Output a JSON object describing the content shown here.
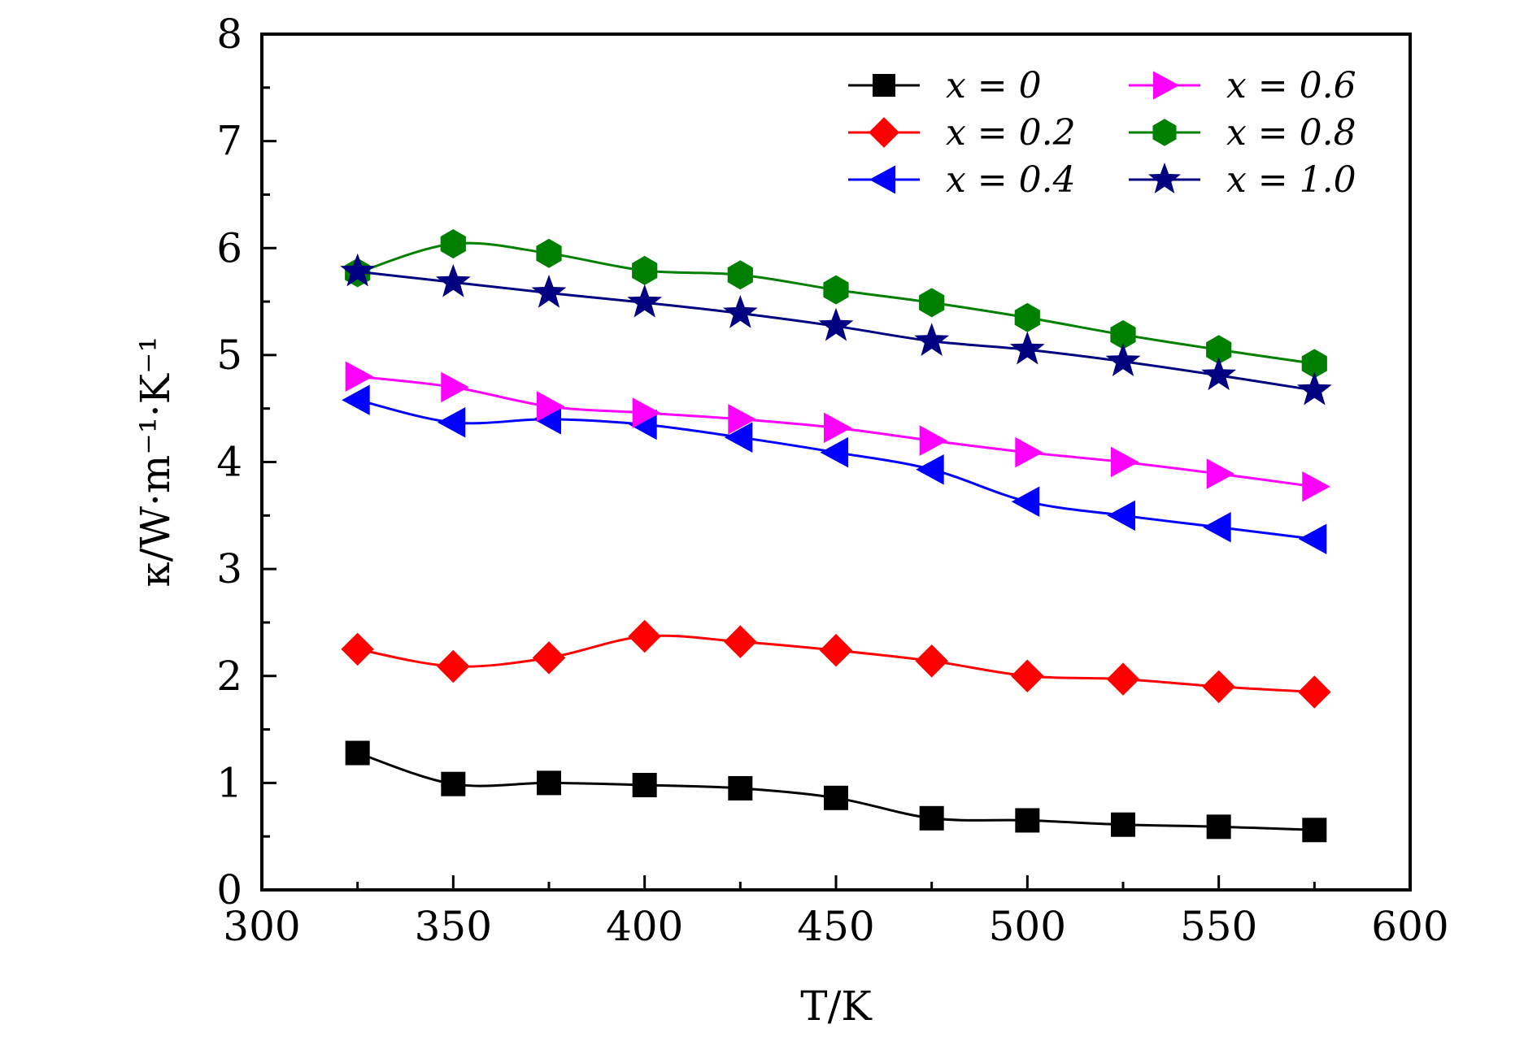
{
  "chart_data": {
    "type": "line",
    "title": "",
    "xlabel": "T/K",
    "ylabel": "κ/W·m⁻¹·K⁻¹",
    "xlim": [
      300,
      600
    ],
    "ylim": [
      0,
      8
    ],
    "x_ticks": [
      300,
      350,
      400,
      450,
      500,
      550,
      600
    ],
    "y_ticks": [
      0,
      1,
      2,
      3,
      4,
      5,
      6,
      7,
      8
    ],
    "x_tick_labels": [
      "300",
      "350",
      "400",
      "450",
      "500",
      "550",
      "600"
    ],
    "y_tick_labels": [
      "0",
      "1",
      "2",
      "3",
      "4",
      "5",
      "6",
      "7",
      "8"
    ],
    "grid": false,
    "legend_position": "top-right",
    "x": [
      325,
      350,
      375,
      400,
      425,
      450,
      475,
      500,
      525,
      550,
      575
    ],
    "series": [
      {
        "name": "x = 0",
        "color": "#000000",
        "marker": "square",
        "values": [
          1.28,
          0.99,
          1.0,
          0.98,
          0.95,
          0.86,
          0.67,
          0.65,
          0.61,
          0.59,
          0.56
        ]
      },
      {
        "name": "x = 0.2",
        "color": "#ff0000",
        "marker": "diamond",
        "values": [
          2.25,
          2.09,
          2.17,
          2.37,
          2.32,
          2.24,
          2.14,
          2.0,
          1.97,
          1.9,
          1.85
        ]
      },
      {
        "name": "x = 0.4",
        "color": "#0000ff",
        "marker": "triangle-left",
        "values": [
          4.58,
          4.37,
          4.4,
          4.35,
          4.23,
          4.09,
          3.93,
          3.63,
          3.5,
          3.39,
          3.28
        ]
      },
      {
        "name": "x = 0.6",
        "color": "#ff00ff",
        "marker": "triangle-right",
        "values": [
          4.8,
          4.7,
          4.52,
          4.46,
          4.4,
          4.32,
          4.2,
          4.09,
          4.0,
          3.89,
          3.77
        ]
      },
      {
        "name": "x = 0.8",
        "color": "#008000",
        "marker": "hexagon",
        "values": [
          5.77,
          6.04,
          5.95,
          5.79,
          5.75,
          5.61,
          5.49,
          5.35,
          5.19,
          5.05,
          4.92
        ]
      },
      {
        "name": "x = 1.0",
        "color": "#000080",
        "marker": "star",
        "values": [
          5.78,
          5.68,
          5.58,
          5.49,
          5.39,
          5.27,
          5.13,
          5.05,
          4.94,
          4.81,
          4.67
        ]
      }
    ]
  }
}
